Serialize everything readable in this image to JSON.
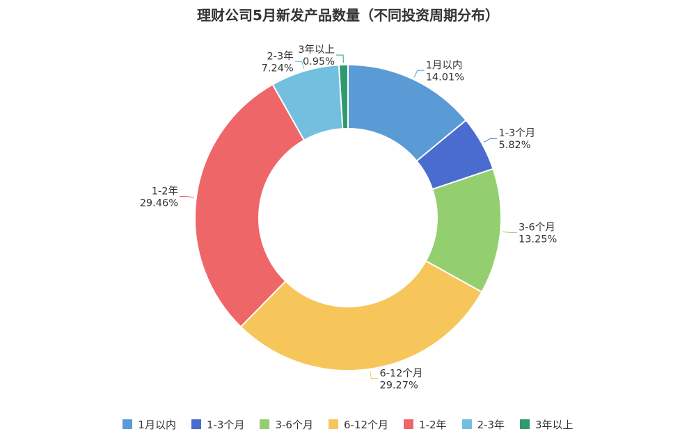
{
  "chart_data": {
    "type": "pie",
    "title": "理财公司5月新发产品数量（不同投资周期分布）",
    "categories": [
      "1月以内",
      "1-3个月",
      "3-6个月",
      "6-12个月",
      "1-2年",
      "2-3年",
      "3年以上"
    ],
    "values": [
      14.01,
      5.82,
      13.25,
      29.27,
      29.46,
      7.24,
      0.95
    ],
    "value_labels": [
      "14.01%",
      "5.82%",
      "13.25%",
      "29.27%",
      "29.46%",
      "7.24%",
      "0.95%"
    ],
    "colors": [
      "#5b9bd5",
      "#4a6ccf",
      "#93cf6f",
      "#f7c65a",
      "#ef6669",
      "#73bfe0",
      "#2f9a6e"
    ],
    "style": "donut",
    "legend_position": "bottom"
  }
}
